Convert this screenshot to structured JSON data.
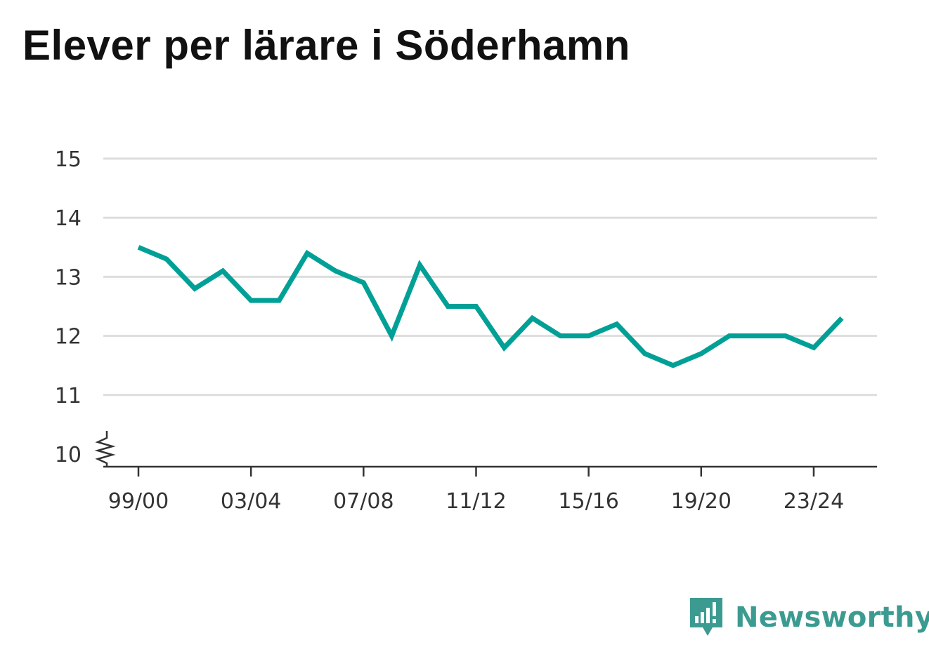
{
  "title": "Elever per lärare i Söderhamn",
  "brand": {
    "name": "Newsworthy",
    "icon": "newsworthy-logo-icon",
    "color": "#3c9b91"
  },
  "chart_data": {
    "type": "line",
    "title": "Elever per lärare i Söderhamn",
    "xlabel": "",
    "ylabel": "",
    "x": [
      "99/00",
      "00/01",
      "01/02",
      "02/03",
      "03/04",
      "04/05",
      "05/06",
      "06/07",
      "07/08",
      "08/09",
      "09/10",
      "10/11",
      "11/12",
      "12/13",
      "13/14",
      "14/15",
      "15/16",
      "16/17",
      "17/18",
      "18/19",
      "19/20",
      "20/21",
      "21/22",
      "22/23",
      "23/24",
      "24/25"
    ],
    "x_tick_labels": [
      "99/00",
      "03/04",
      "07/08",
      "11/12",
      "15/16",
      "19/20",
      "23/24"
    ],
    "y_ticks": [
      10,
      11,
      12,
      13,
      14,
      15
    ],
    "ylim": [
      10,
      15
    ],
    "axis_break": true,
    "grid": true,
    "series": [
      {
        "color": "#00a096",
        "values": [
          13.5,
          13.3,
          12.8,
          13.1,
          12.6,
          12.6,
          13.4,
          13.1,
          12.9,
          12.0,
          13.2,
          12.5,
          12.5,
          11.8,
          12.3,
          12.0,
          12.0,
          12.2,
          11.7,
          11.5,
          11.7,
          12.0,
          12.0,
          12.0,
          11.8,
          12.3
        ]
      }
    ]
  }
}
